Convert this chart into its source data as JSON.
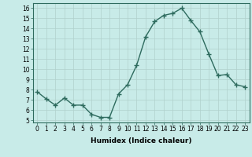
{
  "x": [
    0,
    1,
    2,
    3,
    4,
    5,
    6,
    7,
    8,
    9,
    10,
    11,
    12,
    13,
    14,
    15,
    16,
    17,
    18,
    19,
    20,
    21,
    22,
    23
  ],
  "y": [
    7.8,
    7.1,
    6.5,
    7.2,
    6.5,
    6.5,
    5.6,
    5.3,
    5.3,
    7.6,
    8.5,
    10.4,
    13.2,
    14.7,
    15.3,
    15.5,
    16.0,
    14.8,
    13.7,
    11.5,
    9.4,
    9.5,
    8.5,
    8.3
  ],
  "line_color": "#2e6b5e",
  "marker": "+",
  "marker_size": 4,
  "bg_color": "#c8ebe8",
  "grid_color": "#b0d0cc",
  "xlabel": "Humidex (Indice chaleur)",
  "ylabel_ticks": [
    5,
    6,
    7,
    8,
    9,
    10,
    11,
    12,
    13,
    14,
    15,
    16
  ],
  "xlim": [
    -0.5,
    23.5
  ],
  "ylim": [
    4.8,
    16.5
  ],
  "tick_fontsize": 5.5,
  "xlabel_fontsize": 6.5
}
